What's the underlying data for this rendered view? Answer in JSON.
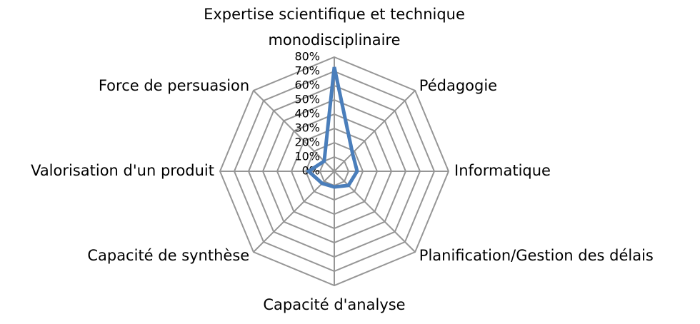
{
  "chart_data": {
    "type": "radar",
    "categories": [
      "Expertise scientifique et technique monodisciplinaire",
      "Pédagogie",
      "Informatique",
      "Planification/Gestion des délais",
      "Capacité d'analyse",
      "Capacité de synthèse",
      "Valorisation d'un produit",
      "Force de persuasion"
    ],
    "values": [
      73,
      18,
      16,
      14,
      11,
      12,
      18,
      10
    ],
    "color": "#4a7ebb",
    "ylim": [
      0,
      80
    ],
    "yticks": [
      {
        "value": 0,
        "label": "0%"
      },
      {
        "value": 10,
        "label": "10%"
      },
      {
        "value": 20,
        "label": "20%"
      },
      {
        "value": 30,
        "label": "30%"
      },
      {
        "value": 40,
        "label": "40%"
      },
      {
        "value": 50,
        "label": "50%"
      },
      {
        "value": 60,
        "label": "60%"
      },
      {
        "value": 70,
        "label": "70%"
      },
      {
        "value": 80,
        "label": "80%"
      }
    ],
    "grid": true
  }
}
